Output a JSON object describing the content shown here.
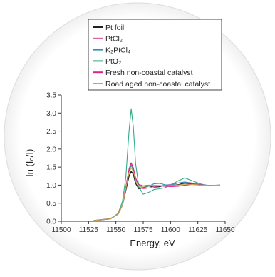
{
  "chart_data": {
    "type": "line",
    "xlabel": "Energy, eV",
    "ylabel": "ln (I₀/I)",
    "xlim": [
      11500,
      11650
    ],
    "ylim": [
      0.0,
      3.5
    ],
    "xticks": [
      "11500",
      "11525",
      "11550",
      "11575",
      "11600",
      "11625",
      "11650"
    ],
    "yticks": [
      "0.0",
      "0.5",
      "1.0",
      "1.5",
      "2.0",
      "2.5",
      "3.0",
      "3.5"
    ],
    "grid": false,
    "legend_position": "top",
    "series": [
      {
        "name": "Pt foil",
        "color": "#222222",
        "x": [
          11530,
          11545,
          11552,
          11556,
          11559,
          11562,
          11564,
          11566,
          11568,
          11571,
          11575,
          11580,
          11585,
          11590,
          11595,
          11600,
          11607,
          11613,
          11620,
          11628,
          11636,
          11645
        ],
        "y": [
          0.02,
          0.07,
          0.2,
          0.45,
          0.85,
          1.25,
          1.38,
          1.3,
          1.05,
          0.9,
          0.93,
          0.98,
          0.95,
          0.96,
          1.0,
          0.99,
          1.01,
          1.06,
          1.03,
          1.0,
          0.99,
          1.0
        ]
      },
      {
        "name": "PtCl₂",
        "color": "#e05fa6",
        "x": [
          11530,
          11545,
          11552,
          11556,
          11559,
          11562,
          11564,
          11566,
          11568,
          11571,
          11575,
          11580,
          11585,
          11590,
          11595,
          11600,
          11607,
          11613,
          11620,
          11628,
          11636,
          11645
        ],
        "y": [
          0.02,
          0.07,
          0.2,
          0.45,
          0.9,
          1.38,
          1.58,
          1.45,
          1.15,
          0.95,
          0.9,
          0.92,
          0.96,
          0.98,
          1.0,
          1.02,
          1.06,
          1.09,
          1.06,
          1.02,
          0.99,
          1.0
        ]
      },
      {
        "name": "K₂PtCl₄",
        "color": "#2c8fb5",
        "x": [
          11530,
          11545,
          11552,
          11556,
          11559,
          11562,
          11564,
          11566,
          11568,
          11571,
          11575,
          11580,
          11585,
          11590,
          11595,
          11600,
          11607,
          11613,
          11620,
          11628,
          11636,
          11645
        ],
        "y": [
          0.02,
          0.07,
          0.2,
          0.45,
          0.9,
          1.4,
          1.55,
          1.4,
          1.15,
          1.0,
          0.92,
          0.97,
          1.04,
          1.05,
          1.01,
          1.0,
          1.06,
          1.08,
          1.05,
          1.01,
          0.99,
          1.0
        ]
      },
      {
        "name": "PtO₂",
        "color": "#33aa88",
        "x": [
          11530,
          11545,
          11552,
          11556,
          11559,
          11562,
          11564,
          11566,
          11568,
          11571,
          11575,
          11580,
          11585,
          11590,
          11595,
          11600,
          11607,
          11613,
          11620,
          11628,
          11636,
          11645
        ],
        "y": [
          0.02,
          0.07,
          0.22,
          0.55,
          1.2,
          2.5,
          3.12,
          2.6,
          1.6,
          0.95,
          0.75,
          0.8,
          0.88,
          0.9,
          0.93,
          1.0,
          1.12,
          1.2,
          1.12,
          1.03,
          0.98,
          1.0
        ]
      },
      {
        "name": "Fresh non-coastal catalyst",
        "color": "#e0208c",
        "x": [
          11530,
          11545,
          11552,
          11556,
          11559,
          11562,
          11564,
          11566,
          11568,
          11571,
          11575,
          11580,
          11585,
          11590,
          11595,
          11600,
          11607,
          11613,
          11620,
          11628,
          11636,
          11645
        ],
        "y": [
          0.02,
          0.07,
          0.2,
          0.45,
          0.95,
          1.45,
          1.62,
          1.48,
          1.2,
          1.02,
          0.98,
          1.0,
          0.99,
          0.98,
          0.97,
          0.96,
          0.97,
          1.0,
          1.02,
          1.01,
          0.99,
          1.0
        ]
      },
      {
        "name": "Road aged non-coastal catalyst",
        "color": "#c4aa4a",
        "x": [
          11530,
          11545,
          11552,
          11556,
          11559,
          11562,
          11564,
          11566,
          11568,
          11571,
          11575,
          11580,
          11585,
          11590,
          11595,
          11600,
          11607,
          11613,
          11620,
          11628,
          11636,
          11645
        ],
        "y": [
          0.02,
          0.07,
          0.2,
          0.45,
          0.9,
          1.35,
          1.48,
          1.38,
          1.12,
          0.98,
          0.95,
          0.99,
          1.0,
          0.99,
          0.98,
          0.99,
          1.0,
          1.03,
          1.02,
          1.0,
          0.99,
          1.0
        ]
      }
    ]
  }
}
